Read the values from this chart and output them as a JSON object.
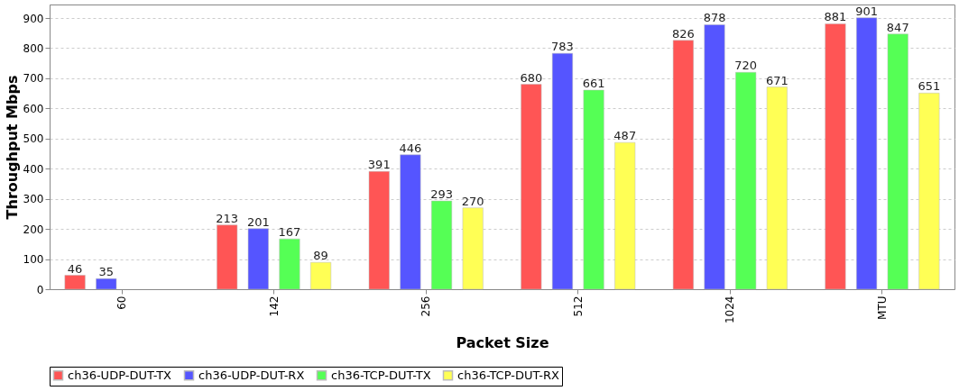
{
  "chart_data": {
    "type": "bar",
    "xlabel": "Packet Size",
    "ylabel": "Throughput Mbps",
    "categories": [
      "60",
      "142",
      "256",
      "512",
      "1024",
      "MTU"
    ],
    "series": [
      {
        "name": "ch36-UDP-DUT-TX",
        "color": "#ff5555",
        "values": [
          46,
          213,
          391,
          680,
          826,
          881
        ]
      },
      {
        "name": "ch36-UDP-DUT-RX",
        "color": "#5555ff",
        "values": [
          35,
          201,
          446,
          783,
          878,
          901
        ]
      },
      {
        "name": "ch36-TCP-DUT-TX",
        "color": "#55ff55",
        "values": [
          null,
          167,
          293,
          661,
          720,
          847
        ]
      },
      {
        "name": "ch36-TCP-DUT-RX",
        "color": "#ffff55",
        "values": [
          null,
          89,
          270,
          487,
          671,
          651
        ]
      }
    ],
    "ylim": [
      0,
      945
    ],
    "yticks": [
      0,
      100,
      200,
      300,
      400,
      500,
      600,
      700,
      800,
      900
    ],
    "grid": "y",
    "legend": "bottom",
    "data_labels": true
  }
}
